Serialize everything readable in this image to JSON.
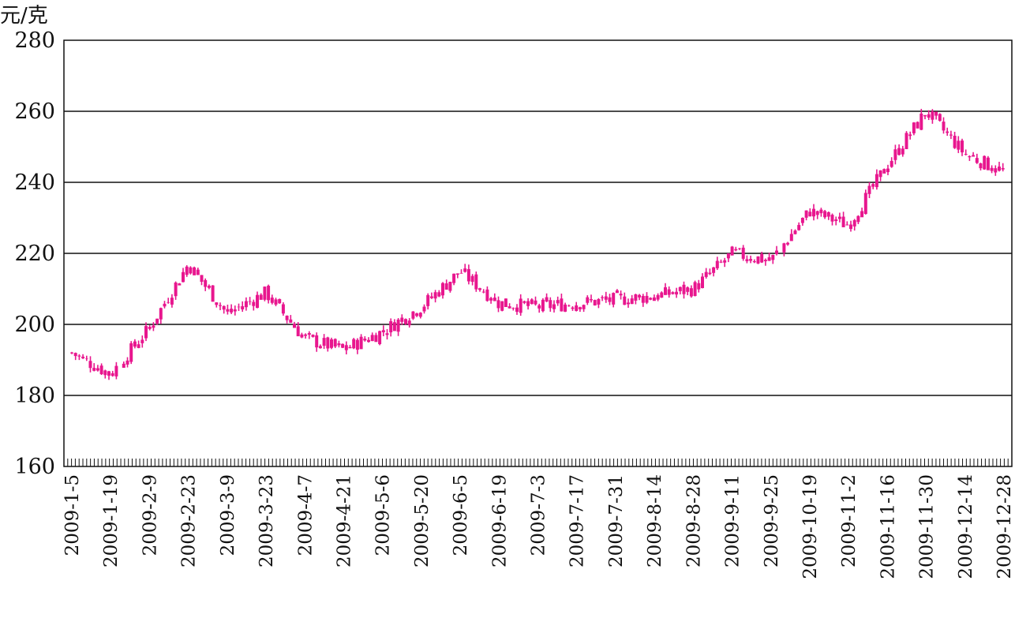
{
  "chart_data": {
    "type": "candlestick",
    "title": "",
    "ylabel": "元/克",
    "xlabel": "",
    "ylim": [
      160,
      280
    ],
    "yticks": [
      160,
      180,
      200,
      220,
      240,
      260,
      280
    ],
    "grid": true,
    "color": "#e8168e",
    "x_tick_labels": [
      "2009-1-5",
      "2009-1-19",
      "2009-2-9",
      "2009-2-23",
      "2009-3-9",
      "2009-3-23",
      "2009-4-7",
      "2009-4-21",
      "2009-5-6",
      "2009-5-20",
      "2009-6-5",
      "2009-6-19",
      "2009-7-3",
      "2009-7-17",
      "2009-7-31",
      "2009-8-14",
      "2009-8-28",
      "2009-9-11",
      "2009-9-25",
      "2009-10-19",
      "2009-11-2",
      "2009-11-16",
      "2009-11-30",
      "2009-12-14",
      "2009-12-28"
    ],
    "series": [
      {
        "values": [
          {
            "x": "2009-1-5",
            "y": 192
          },
          {
            "x": "2009-1-19",
            "y": 186
          },
          {
            "x": "2009-2-9",
            "y": 199
          },
          {
            "x": "2009-2-23",
            "y": 217
          },
          {
            "x": "2009-3-9",
            "y": 203
          },
          {
            "x": "2009-3-23",
            "y": 209
          },
          {
            "x": "2009-4-7",
            "y": 196
          },
          {
            "x": "2009-4-21",
            "y": 193
          },
          {
            "x": "2009-5-6",
            "y": 198
          },
          {
            "x": "2009-5-20",
            "y": 205
          },
          {
            "x": "2009-6-5",
            "y": 215
          },
          {
            "x": "2009-6-19",
            "y": 206
          },
          {
            "x": "2009-7-3",
            "y": 205
          },
          {
            "x": "2009-7-17",
            "y": 206
          },
          {
            "x": "2009-7-31",
            "y": 207
          },
          {
            "x": "2009-8-14",
            "y": 208
          },
          {
            "x": "2009-8-28",
            "y": 210
          },
          {
            "x": "2009-9-11",
            "y": 220
          },
          {
            "x": "2009-9-25",
            "y": 218
          },
          {
            "x": "2009-10-19",
            "y": 232
          },
          {
            "x": "2009-11-2",
            "y": 228
          },
          {
            "x": "2009-11-16",
            "y": 245
          },
          {
            "x": "2009-11-30",
            "y": 260
          },
          {
            "x": "2009-12-14",
            "y": 248
          },
          {
            "x": "2009-12-28",
            "y": 243
          }
        ]
      }
    ]
  }
}
